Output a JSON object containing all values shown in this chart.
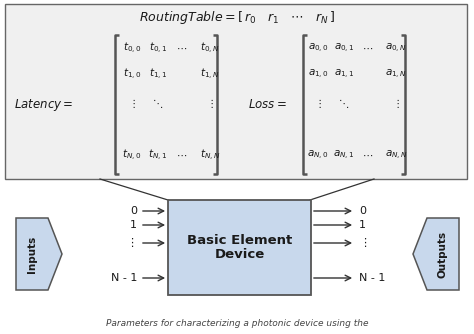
{
  "bg_color": "#ffffff",
  "box_bg": "#c8d8ec",
  "box_border": "#555555",
  "arrow_color": "#333333",
  "text_color": "#1a1a1a",
  "top_box_facecolor": "#f0f0f0",
  "top_box_border": "#666666",
  "device_label": "Basic Element\nDevice",
  "inputs_label": "Inputs",
  "outputs_label": "Outputs",
  "input_labels": [
    "0",
    "1",
    "⋮",
    "N - 1"
  ],
  "output_labels": [
    "0",
    "1",
    "⋮",
    "N - 1"
  ]
}
